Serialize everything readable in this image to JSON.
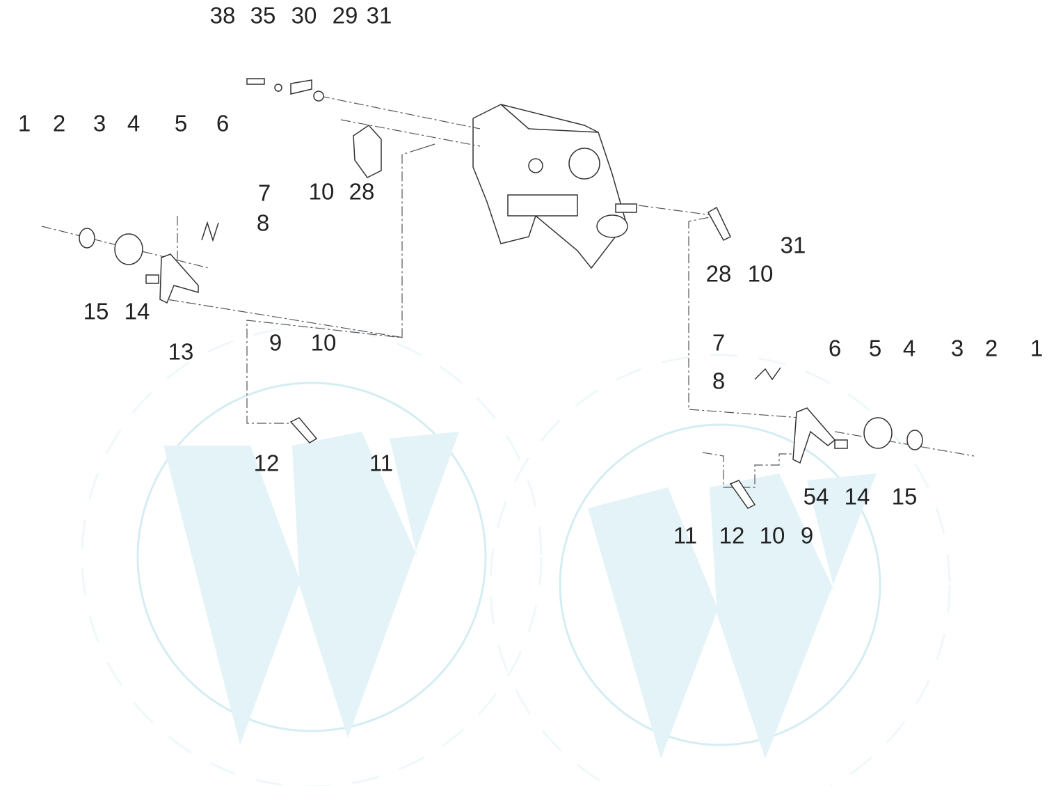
{
  "callouts": [
    "38",
    "35",
    "30",
    "29",
    "31",
    "1",
    "2",
    "3",
    "4",
    "5",
    "6",
    "7",
    "8",
    "10",
    "28",
    "15",
    "14",
    "13",
    "9",
    "10",
    "12",
    "11",
    "31",
    "28",
    "10",
    "7",
    "8",
    "6",
    "5",
    "4",
    "3",
    "2",
    "1",
    "54",
    "14",
    "15",
    "11",
    "12",
    "10",
    "9"
  ]
}
